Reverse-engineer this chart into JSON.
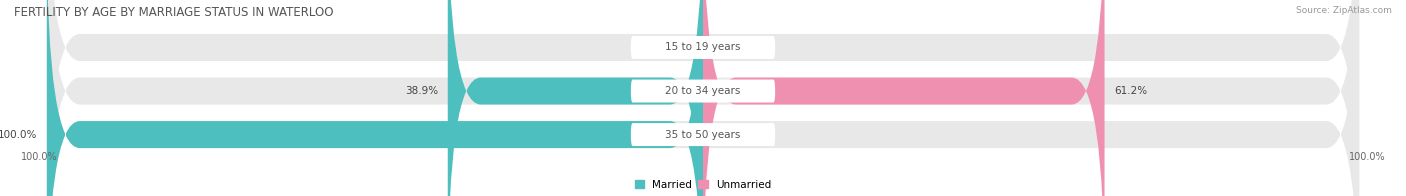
{
  "title": "FERTILITY BY AGE BY MARRIAGE STATUS IN WATERLOO",
  "source": "Source: ZipAtlas.com",
  "rows": [
    {
      "label": "15 to 19 years",
      "married_pct": 0.0,
      "unmarried_pct": 0.0
    },
    {
      "label": "20 to 34 years",
      "married_pct": 38.9,
      "unmarried_pct": 61.2
    },
    {
      "label": "35 to 50 years",
      "married_pct": 100.0,
      "unmarried_pct": 0.0
    }
  ],
  "married_color": "#4DBFBF",
  "unmarried_color": "#F090B0",
  "bar_bg_color": "#E8E8E8",
  "bar_height": 0.62,
  "axis_label_left": "100.0%",
  "axis_label_right": "100.0%",
  "legend_married": "Married",
  "legend_unmarried": "Unmarried",
  "title_fontsize": 8.5,
  "source_fontsize": 6.5,
  "label_fontsize": 7.5,
  "pct_fontsize": 7.5,
  "tick_fontsize": 7
}
